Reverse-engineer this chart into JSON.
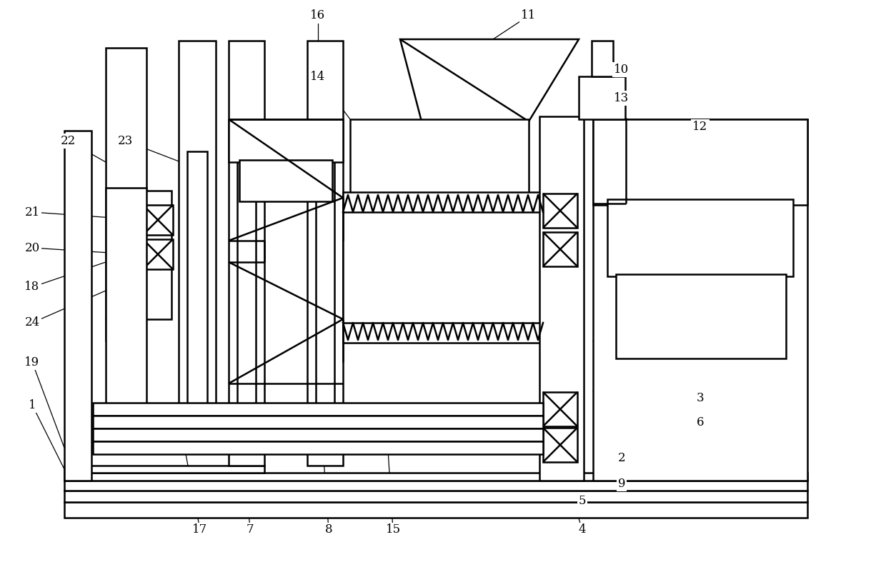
{
  "bg": "#ffffff",
  "lc": "#000000",
  "lw": 1.8,
  "fw": 12.4,
  "fh": 7.87,
  "dpi": 100
}
